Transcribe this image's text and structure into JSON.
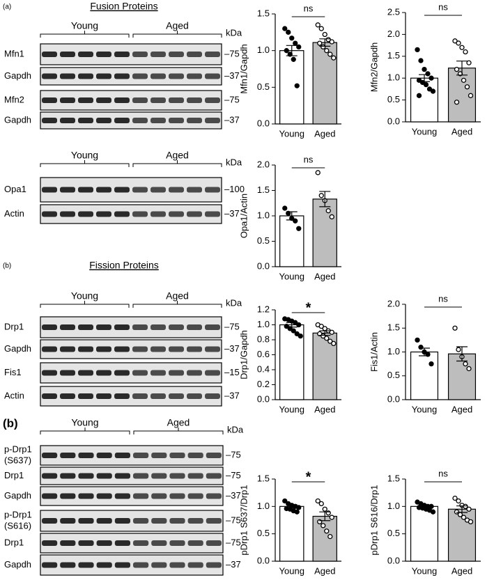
{
  "panels": {
    "a": "(a)",
    "b1": "(b)",
    "b2": "(b)"
  },
  "blots": [
    {
      "title": "Fusion Proteins",
      "groups": [
        "Young",
        "Aged"
      ],
      "unit": "kDa",
      "rows": [
        {
          "label": [
            "Mfn1"
          ],
          "marker": "–75"
        },
        {
          "label": [
            "Gapdh"
          ],
          "marker": "–37"
        },
        {
          "label": [
            "Mfn2"
          ],
          "marker": "–75"
        },
        {
          "label": [
            "Gapdh"
          ],
          "marker": "–37"
        }
      ]
    },
    {
      "groups": [
        "Young",
        "Aged"
      ],
      "unit": "kDa",
      "rows": [
        {
          "label": [
            "Opa1"
          ],
          "marker": "–100"
        },
        {
          "label": [
            "Actin"
          ],
          "marker": "–37"
        }
      ]
    },
    {
      "title": "Fission Proteins",
      "groups": [
        "Young",
        "Aged"
      ],
      "unit": "kDa",
      "rows": [
        {
          "label": [
            "Drp1"
          ],
          "marker": "–75"
        },
        {
          "label": [
            "Gapdh"
          ],
          "marker": "–37"
        },
        {
          "label": [
            "Fis1"
          ],
          "marker": "–15"
        },
        {
          "label": [
            "Actin"
          ],
          "marker": "–37"
        }
      ]
    },
    {
      "groups": [
        "Young",
        "Aged"
      ],
      "unit": "kDa",
      "rows": [
        {
          "label": [
            "p-Drp1",
            "(S637)"
          ],
          "marker": "–75"
        },
        {
          "label": [
            "Drp1"
          ],
          "marker": "–75"
        },
        {
          "label": [
            "Gapdh"
          ],
          "marker": "–37"
        },
        {
          "label": [
            "p-Drp1",
            "(S616)"
          ],
          "marker": "–75"
        },
        {
          "label": [
            "Drp1"
          ],
          "marker": "–75"
        },
        {
          "label": [
            "Gapdh"
          ],
          "marker": "–37"
        }
      ]
    }
  ],
  "chart_data": [
    {
      "type": "bar",
      "ylabel": "Mfn1/Gapdh",
      "categories": [
        "Young",
        "Aged"
      ],
      "values": [
        1.0,
        1.11
      ],
      "errors": [
        0.07,
        0.05
      ],
      "significance": "ns",
      "points": [
        [
          1.3,
          1.25,
          1.17,
          1.1,
          1.05,
          1.0,
          0.95,
          0.88,
          0.52
        ],
        [
          1.35,
          1.3,
          1.22,
          1.15,
          1.12,
          1.1,
          1.05,
          1.0,
          0.95,
          0.9
        ]
      ],
      "bar_colors": [
        "#ffffff",
        "#bdbdbd"
      ],
      "point_fills": [
        "#000000",
        "#ffffff"
      ],
      "ylim": [
        0,
        1.5
      ],
      "yticks": [
        {
          "value": 0,
          "label": "0.0"
        },
        0.5,
        {
          "value": 1,
          "label": "1.0"
        },
        1.5
      ]
    },
    {
      "type": "bar",
      "ylabel": "Mfn2/Gapdh",
      "categories": [
        "Young",
        "Aged"
      ],
      "values": [
        1.0,
        1.23
      ],
      "errors": [
        0.08,
        0.16
      ],
      "significance": "ns",
      "points": [
        [
          1.65,
          1.4,
          1.2,
          1.1,
          1.0,
          0.95,
          0.9,
          0.85,
          0.75,
          0.7,
          0.6
        ],
        [
          1.85,
          1.8,
          1.7,
          1.6,
          1.35,
          1.2,
          1.1,
          0.95,
          0.8,
          0.6,
          0.45
        ]
      ],
      "bar_colors": [
        "#ffffff",
        "#bdbdbd"
      ],
      "point_fills": [
        "#000000",
        "#ffffff"
      ],
      "ylim": [
        0,
        2.5
      ],
      "yticks": [
        {
          "value": 0,
          "label": "0.0"
        },
        0.5,
        {
          "value": 1,
          "label": "1.0"
        },
        1.5,
        {
          "value": 2,
          "label": "2.0"
        },
        2.5
      ]
    },
    {
      "type": "bar",
      "ylabel": "Opa1/Actin",
      "categories": [
        "Young",
        "Aged"
      ],
      "values": [
        1.0,
        1.33
      ],
      "errors": [
        0.08,
        0.15
      ],
      "significance": "ns",
      "points": [
        [
          1.15,
          1.05,
          0.95,
          0.9,
          0.75
        ],
        [
          1.85,
          1.4,
          1.3,
          1.1,
          0.98
        ]
      ],
      "bar_colors": [
        "#ffffff",
        "#bdbdbd"
      ],
      "point_fills": [
        "#000000",
        "#ffffff"
      ],
      "ylim": [
        0,
        2
      ],
      "yticks": [
        {
          "value": 0,
          "label": "0.0"
        },
        0.5,
        {
          "value": 1,
          "label": "1.0"
        },
        1.5,
        {
          "value": 2,
          "label": "2.0"
        }
      ]
    },
    {
      "type": "bar",
      "ylabel": "Drp1/Gapdh",
      "categories": [
        "Young",
        "Aged"
      ],
      "values": [
        1.0,
        0.89
      ],
      "errors": [
        0.03,
        0.03
      ],
      "significance": "*",
      "points": [
        [
          1.08,
          1.07,
          1.05,
          1.03,
          1.0,
          0.98,
          0.95,
          0.92,
          0.88,
          0.85
        ],
        [
          1.0,
          0.98,
          0.95,
          0.92,
          0.9,
          0.88,
          0.85,
          0.82,
          0.78,
          0.75
        ]
      ],
      "bar_colors": [
        "#ffffff",
        "#bdbdbd"
      ],
      "point_fills": [
        "#000000",
        "#ffffff"
      ],
      "ylim": [
        0,
        1.2
      ],
      "yticks": [
        {
          "value": 0,
          "label": "0.0"
        },
        0.2,
        0.4,
        0.6,
        0.8,
        {
          "value": 1,
          "label": "1.0"
        },
        1.2
      ]
    },
    {
      "type": "bar",
      "ylabel": "Fis1/Actin",
      "categories": [
        "Young",
        "Aged"
      ],
      "values": [
        1.0,
        0.96
      ],
      "errors": [
        0.08,
        0.15
      ],
      "significance": "ns",
      "points": [
        [
          1.25,
          1.1,
          1.0,
          0.95,
          0.75
        ],
        [
          1.5,
          1.05,
          0.9,
          0.75,
          0.65
        ]
      ],
      "bar_colors": [
        "#ffffff",
        "#bdbdbd"
      ],
      "point_fills": [
        "#000000",
        "#ffffff"
      ],
      "ylim": [
        0,
        2
      ],
      "yticks": [
        {
          "value": 0,
          "label": "0.0"
        },
        0.5,
        {
          "value": 1,
          "label": "1.0"
        },
        1.5,
        {
          "value": 2,
          "label": "2.0"
        }
      ]
    },
    {
      "type": "bar",
      "ylabel": "pDrp1 S637/Drp1",
      "categories": [
        "Young",
        "Aged"
      ],
      "values": [
        1.0,
        0.82
      ],
      "errors": [
        0.03,
        0.08
      ],
      "significance": "*",
      "points": [
        [
          1.1,
          1.05,
          1.02,
          1.0,
          0.98,
          0.96,
          0.95,
          0.92,
          0.9
        ],
        [
          1.1,
          1.05,
          0.95,
          0.88,
          0.8,
          0.72,
          0.65,
          0.55,
          0.45
        ]
      ],
      "bar_colors": [
        "#ffffff",
        "#bdbdbd"
      ],
      "point_fills": [
        "#000000",
        "#ffffff"
      ],
      "ylim": [
        0,
        1.5
      ],
      "yticks": [
        {
          "value": 0,
          "label": "0.0"
        },
        0.5,
        {
          "value": 1,
          "label": "1.0"
        },
        1.5
      ]
    },
    {
      "type": "bar",
      "ylabel": "pDrp1 S616/Drp1",
      "categories": [
        "Young",
        "Aged"
      ],
      "values": [
        1.0,
        0.95
      ],
      "errors": [
        0.02,
        0.06
      ],
      "significance": "ns",
      "points": [
        [
          1.08,
          1.05,
          1.02,
          1.0,
          1.0,
          0.98,
          0.97,
          0.95,
          0.93,
          0.9
        ],
        [
          1.15,
          1.1,
          1.02,
          1.0,
          0.95,
          0.9,
          0.85,
          0.8,
          0.75,
          0.72
        ]
      ],
      "bar_colors": [
        "#ffffff",
        "#bdbdbd"
      ],
      "point_fills": [
        "#000000",
        "#ffffff"
      ],
      "ylim": [
        0,
        1.5
      ],
      "yticks": [
        {
          "value": 0,
          "label": "0.0"
        },
        0.5,
        {
          "value": 1,
          "label": "1.0"
        },
        1.5
      ]
    }
  ]
}
